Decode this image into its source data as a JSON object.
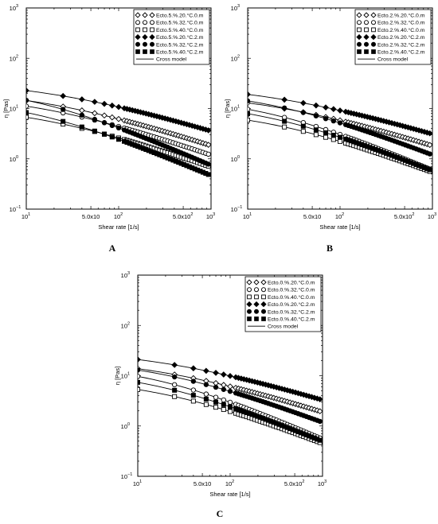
{
  "chart_data": [
    {
      "type": "scatter",
      "panel_label": "A",
      "xlabel": "Shear rate [1/s]",
      "ylabel": "η [Pas]",
      "xscale": "log",
      "yscale": "log",
      "xlim": [
        10,
        1000
      ],
      "ylim": [
        0.1,
        1000
      ],
      "x_ticks": [
        "10",
        "5.0x10",
        "10",
        "5.0x10",
        "10"
      ],
      "x_tick_sups": [
        "1",
        "",
        "2",
        "2",
        "3"
      ],
      "y_ticks": [
        "10",
        "10",
        "10",
        "10",
        "10"
      ],
      "y_tick_sups": [
        "−1",
        "0",
        "1",
        "2",
        "3"
      ],
      "legend_position": "top-right",
      "series": [
        {
          "name": "Ecto.5.%.20.°C.0.m",
          "marker": "diamond-open",
          "eta0": 25,
          "lambda": 0.06,
          "n": 0.62
        },
        {
          "name": "Ecto.5.%.32.°C.0.m",
          "marker": "circle-open",
          "eta0": 20,
          "lambda": 0.07,
          "n": 0.65
        },
        {
          "name": "Ecto.5.%.40.°C.0.m",
          "marker": "square-open",
          "eta0": 12,
          "lambda": 0.07,
          "n": 0.66
        },
        {
          "name": "Ecto.5.%.20.°C.2.m",
          "marker": "diamond-filled",
          "eta0": 38,
          "lambda": 0.05,
          "n": 0.58
        },
        {
          "name": "Ecto.5.%.32.°C.2.m",
          "marker": "circle-filled",
          "eta0": 28,
          "lambda": 0.09,
          "n": 0.8
        },
        {
          "name": "Ecto.5.%.40.°C.2.m",
          "marker": "square-filled",
          "eta0": 16,
          "lambda": 0.09,
          "n": 0.78
        }
      ],
      "line_label": "Cross model"
    },
    {
      "type": "scatter",
      "panel_label": "B",
      "xlabel": "Shear rate [1/s]",
      "ylabel": "η [Pas]",
      "xscale": "log",
      "yscale": "log",
      "xlim": [
        10,
        1000
      ],
      "ylim": [
        0.1,
        1000
      ],
      "x_ticks": [
        "10",
        "5.0x10",
        "10",
        "5.0x10",
        "10"
      ],
      "x_tick_sups": [
        "1",
        "",
        "2",
        "2",
        "3"
      ],
      "y_ticks": [
        "10",
        "10",
        "10",
        "10",
        "10"
      ],
      "y_tick_sups": [
        "−1",
        "0",
        "1",
        "2",
        "3"
      ],
      "legend_position": "top-right",
      "series": [
        {
          "name": "Ecto.2.%.20.°C.0.m",
          "marker": "diamond-open",
          "eta0": 22,
          "lambda": 0.055,
          "n": 0.6
        },
        {
          "name": "Ecto.2.%.32.°C.0.m",
          "marker": "circle-open",
          "eta0": 17,
          "lambda": 0.07,
          "n": 0.78
        },
        {
          "name": "Ecto.2.%.40.°C.0.m",
          "marker": "square-open",
          "eta0": 10,
          "lambda": 0.06,
          "n": 0.7
        },
        {
          "name": "Ecto.2.%.20.°C.2.m",
          "marker": "diamond-filled",
          "eta0": 32,
          "lambda": 0.05,
          "n": 0.57
        },
        {
          "name": "Ecto.2.%.32.°C.2.m",
          "marker": "circle-filled",
          "eta0": 24,
          "lambda": 0.06,
          "n": 0.72
        },
        {
          "name": "Ecto.2.%.40.°C.2.m",
          "marker": "square-filled",
          "eta0": 14,
          "lambda": 0.07,
          "n": 0.74
        }
      ],
      "line_label": "Cross model"
    },
    {
      "type": "scatter",
      "panel_label": "C",
      "xlabel": "Shear rate [1/s]",
      "ylabel": "η [Pas]",
      "xscale": "log",
      "yscale": "log",
      "xlim": [
        10,
        1000
      ],
      "ylim": [
        0.1,
        1000
      ],
      "x_ticks": [
        "10",
        "5.0x10",
        "10",
        "5.0x10",
        "10"
      ],
      "x_tick_sups": [
        "1",
        "",
        "2",
        "2",
        "3"
      ],
      "y_ticks": [
        "10",
        "10",
        "10",
        "10",
        "10"
      ],
      "y_tick_sups": [
        "−1",
        "0",
        "1",
        "2",
        "3"
      ],
      "legend_position": "top-right",
      "series": [
        {
          "name": "Ecto.0.%.20.°C.0.m",
          "marker": "diamond-open",
          "eta0": 24,
          "lambda": 0.06,
          "n": 0.6
        },
        {
          "name": "Ecto.0.%.32.°C.0.m",
          "marker": "circle-open",
          "eta0": 17,
          "lambda": 0.07,
          "n": 0.8
        },
        {
          "name": "Ecto.0.%.40.°C.0.m",
          "marker": "square-open",
          "eta0": 9,
          "lambda": 0.06,
          "n": 0.72
        },
        {
          "name": "Ecto.0.%.20.°C.2.m",
          "marker": "diamond-filled",
          "eta0": 35,
          "lambda": 0.05,
          "n": 0.58
        },
        {
          "name": "Ecto.0.%.32.°C.2.m",
          "marker": "circle-filled",
          "eta0": 22,
          "lambda": 0.06,
          "n": 0.7
        },
        {
          "name": "Ecto.0.%.40.°C.2.m",
          "marker": "square-filled",
          "eta0": 13,
          "lambda": 0.07,
          "n": 0.76
        }
      ],
      "line_label": "Cross model"
    }
  ]
}
